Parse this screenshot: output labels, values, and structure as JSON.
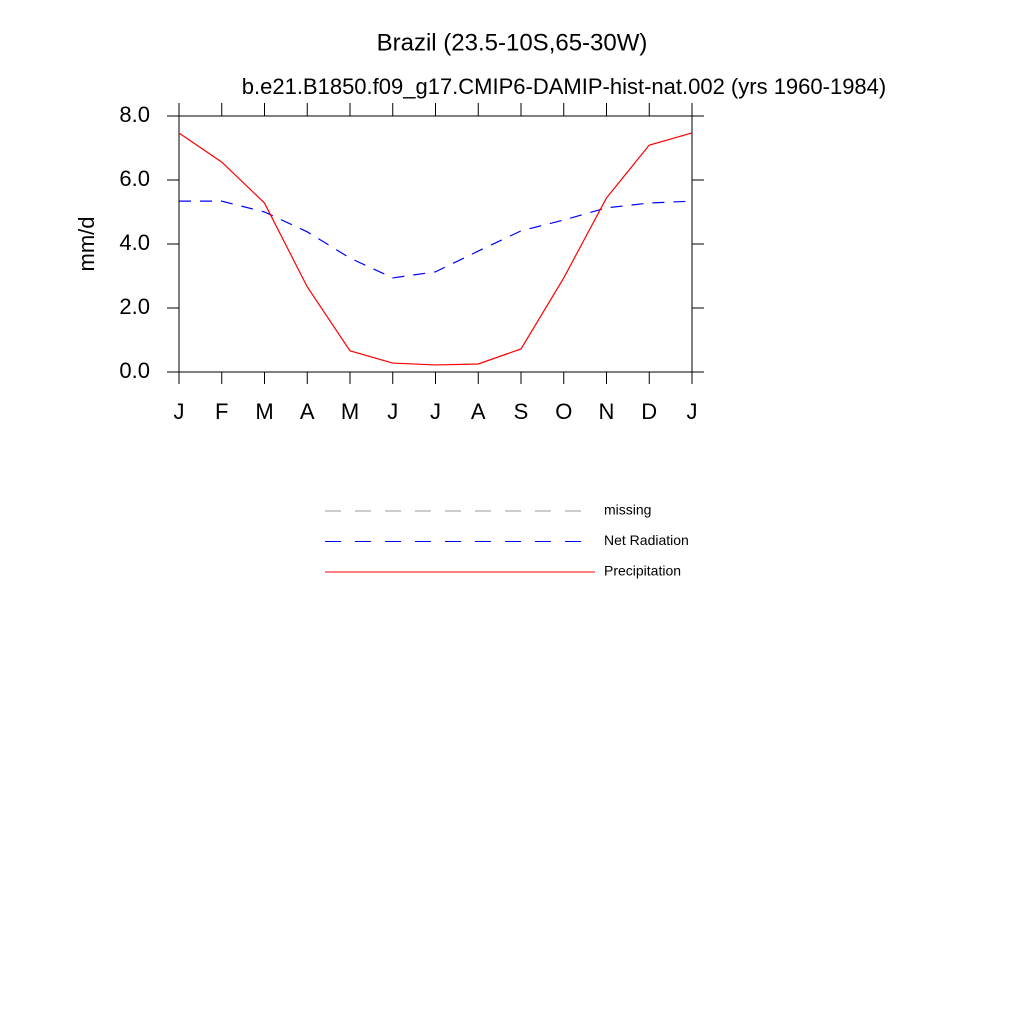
{
  "chart_data": {
    "type": "line",
    "title": "Brazil (23.5-10S,65-30W)",
    "subtitle": "b.e21.B1850.f09_g17.CMIP6-DAMIP-hist-nat.002 (yrs 1960-1984)",
    "y_label": "mm/d",
    "categories": [
      "J",
      "F",
      "M",
      "A",
      "M",
      "J",
      "J",
      "A",
      "S",
      "O",
      "N",
      "D",
      "J"
    ],
    "ylim": [
      0,
      8
    ],
    "yticks": [
      {
        "value": 0,
        "label": "0.0"
      },
      {
        "value": 2,
        "label": "2.0"
      },
      {
        "value": 4,
        "label": "4.0"
      },
      {
        "value": 6,
        "label": "6.0"
      },
      {
        "value": 8,
        "label": "8.0"
      }
    ],
    "series": [
      {
        "name": "missing",
        "color": "#999999",
        "dashed": true,
        "values": [
          null,
          null,
          null,
          null,
          null,
          null,
          null,
          null,
          null,
          null,
          null,
          null,
          null
        ]
      },
      {
        "name": "Net Radiation",
        "color": "#0000ff",
        "dashed": true,
        "values": [
          5.34,
          5.34,
          5.0,
          4.38,
          3.56,
          2.94,
          3.13,
          3.78,
          4.41,
          4.75,
          5.13,
          5.28,
          5.34
        ]
      },
      {
        "name": "Precipitation",
        "color": "#ff0000",
        "dashed": false,
        "values": [
          7.47,
          6.56,
          5.28,
          2.66,
          0.66,
          0.28,
          0.22,
          0.25,
          0.72,
          2.94,
          5.44,
          7.09,
          7.47
        ]
      }
    ]
  }
}
